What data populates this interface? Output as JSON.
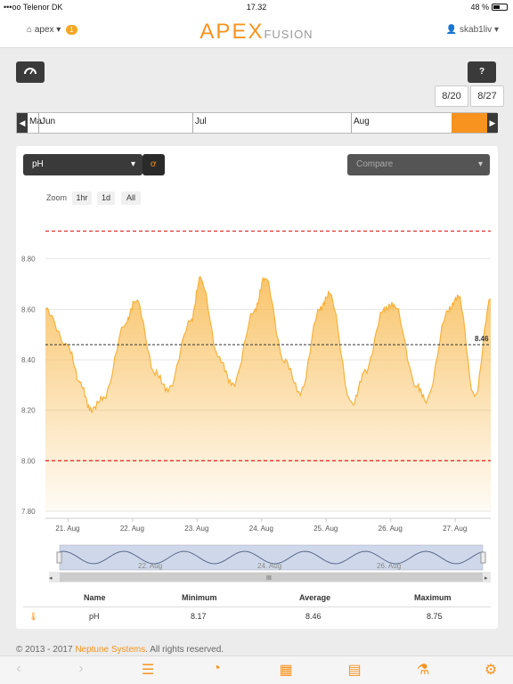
{
  "status": {
    "carrier": "Telenor DK",
    "time": "17.32",
    "battery": "48 %"
  },
  "header": {
    "home_label": "apex",
    "badge": "1",
    "logo_main": "APEX",
    "logo_sub": "FUSION",
    "user": "skab1liv"
  },
  "toolbar": {
    "help_label": "?"
  },
  "range": {
    "start": "8/20",
    "end": "8/27"
  },
  "timeline": {
    "months": [
      "Ma",
      "Jun",
      "Jul",
      "Aug"
    ]
  },
  "controls": {
    "probe": "pH",
    "compare_placeholder": "Compare",
    "zoom_label": "Zoom",
    "zoom_options": [
      "1hr",
      "1d",
      "All"
    ]
  },
  "chart_data": {
    "type": "area",
    "y_ticks": [
      "8.80",
      "8.60",
      "8.40",
      "8.20",
      "8.00",
      "7.80"
    ],
    "ylim": [
      7.8,
      9.0
    ],
    "x_ticks": [
      "21. Aug",
      "22. Aug",
      "23. Aug",
      "24. Aug",
      "25. Aug",
      "26. Aug",
      "27. Aug"
    ],
    "x": [
      20.65,
      21.0,
      21.2,
      21.35,
      21.55,
      21.9,
      22.05,
      22.35,
      22.55,
      22.9,
      23.05,
      23.35,
      23.55,
      23.9,
      24.05,
      24.35,
      24.6,
      24.9,
      25.05,
      25.4,
      25.6,
      25.9,
      26.05,
      26.4,
      26.55,
      26.9,
      27.05,
      27.3,
      27.55
    ],
    "y": [
      8.6,
      8.45,
      8.3,
      8.2,
      8.25,
      8.55,
      8.64,
      8.35,
      8.28,
      8.55,
      8.72,
      8.4,
      8.3,
      8.6,
      8.73,
      8.4,
      8.27,
      8.6,
      8.66,
      8.22,
      8.35,
      8.6,
      8.62,
      8.3,
      8.24,
      8.6,
      8.65,
      8.25,
      8.64
    ],
    "series": [
      {
        "name": "pH",
        "color": "#f7b23b"
      }
    ],
    "average_line": 8.46,
    "average_label": "8.46",
    "alarm_high": 8.91,
    "alarm_low": 8.0,
    "navigator_ticks": [
      "22. Aug",
      "24. Aug",
      "26. Aug"
    ],
    "navigator_label": "III"
  },
  "stats": {
    "headers": [
      "Name",
      "Minimum",
      "Average",
      "Maximum"
    ],
    "row": {
      "name": "pH",
      "min": "8.17",
      "avg": "8.46",
      "max": "8.75"
    }
  },
  "footer": {
    "prefix": "© 2013 - 2017 ",
    "company": "Neptune Systems",
    "suffix": ". All rights reserved."
  }
}
